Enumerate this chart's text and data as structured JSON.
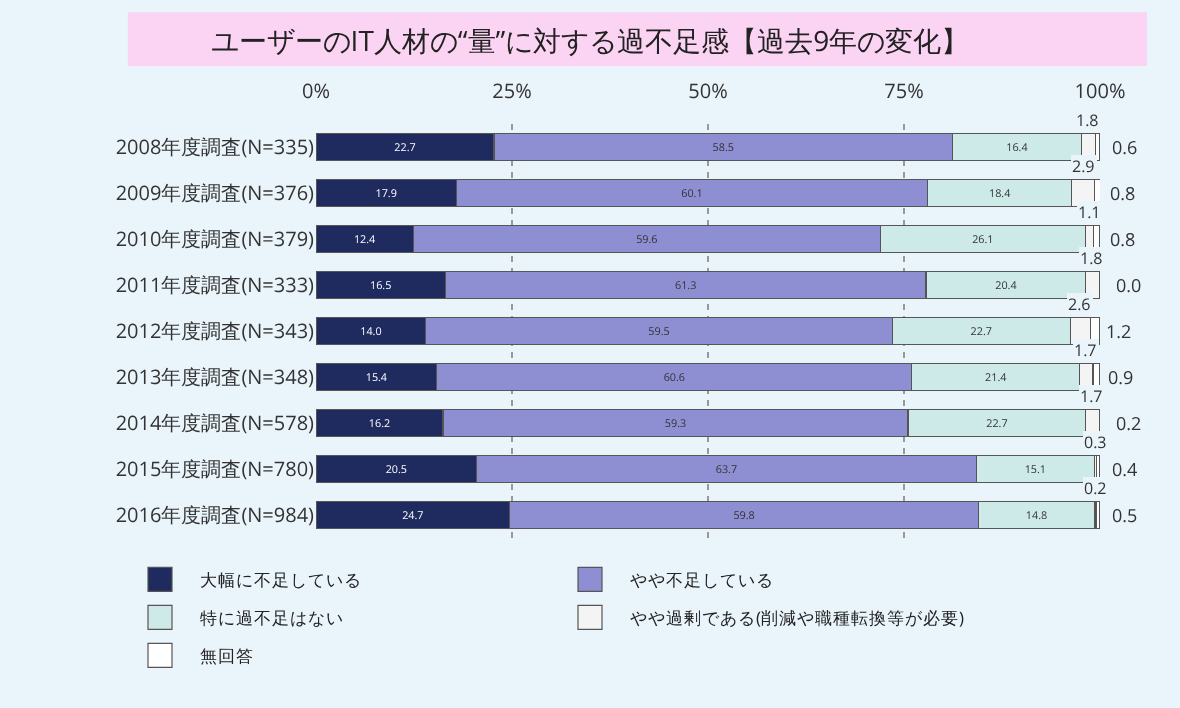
{
  "chart_data": {
    "type": "bar",
    "orientation": "horizontal",
    "stacked": true,
    "title": "ユーザーのIT人材の“量”に対する過不足感【過去9年の変化】",
    "categories": [
      "2008年度調査(N=335)",
      "2009年度調査(N=376)",
      "2010年度調査(N=379)",
      "2011年度調査(N=333)",
      "2012年度調査(N=343)",
      "2013年度調査(N=348)",
      "2014年度調査(N=578)",
      "2015年度調査(N=780)",
      "2016年度調査(N=984)"
    ],
    "series": [
      {
        "name": "大幅に不足している",
        "color": "#1f2a5e",
        "values": [
          22.7,
          17.9,
          12.4,
          16.5,
          14.0,
          15.4,
          16.2,
          20.5,
          24.7
        ],
        "value_labels": [
          "22.7",
          "17.9",
          "12.4",
          "16.5",
          "14.0",
          "15.4",
          "16.2",
          "20.5",
          "24.7"
        ]
      },
      {
        "name": "やや不足している",
        "color": "#8e8ed2",
        "values": [
          58.5,
          60.1,
          59.6,
          61.3,
          59.5,
          60.6,
          59.3,
          63.7,
          59.8
        ],
        "value_labels": [
          "58.5",
          "60.1",
          "59.6",
          "61.3",
          "59.5",
          "60.6",
          "59.3",
          "63.7",
          "59.8"
        ]
      },
      {
        "name": "特に過不足はない",
        "color": "#cdeae8",
        "values": [
          16.4,
          18.4,
          26.1,
          20.4,
          22.7,
          21.4,
          22.7,
          15.1,
          14.8
        ],
        "value_labels": [
          "16.4",
          "18.4",
          "26.1",
          "20.4",
          "22.7",
          "21.4",
          "22.7",
          "15.1",
          "14.8"
        ]
      },
      {
        "name": "やや過剰である(削減や職種転換等が必要)",
        "color": "#f4f4f4",
        "values": [
          1.8,
          2.9,
          1.1,
          1.8,
          2.6,
          1.7,
          1.7,
          0.3,
          0.2
        ],
        "value_labels": [
          "1.8",
          "2.9",
          "1.1",
          "1.8",
          "2.6",
          "1.7",
          "1.7",
          "0.3",
          "0.2"
        ]
      },
      {
        "name": "無回答",
        "color": "#ffffff",
        "values": [
          0.6,
          0.8,
          0.8,
          0.0,
          1.2,
          0.9,
          0.2,
          0.4,
          0.5
        ],
        "value_labels": [
          "0.6",
          "0.8",
          "0.8",
          "0.0",
          "1.2",
          "0.9",
          "0.2",
          "0.4",
          "0.5"
        ]
      }
    ],
    "xlim": [
      0,
      100
    ],
    "xticks": [
      {
        "value": 0,
        "label": "0%"
      },
      {
        "value": 25,
        "label": "25%"
      },
      {
        "value": 50,
        "label": "50%"
      },
      {
        "value": 75,
        "label": "75%"
      },
      {
        "value": 100,
        "label": "100%"
      }
    ],
    "grid": "x",
    "legend": "bottom"
  }
}
